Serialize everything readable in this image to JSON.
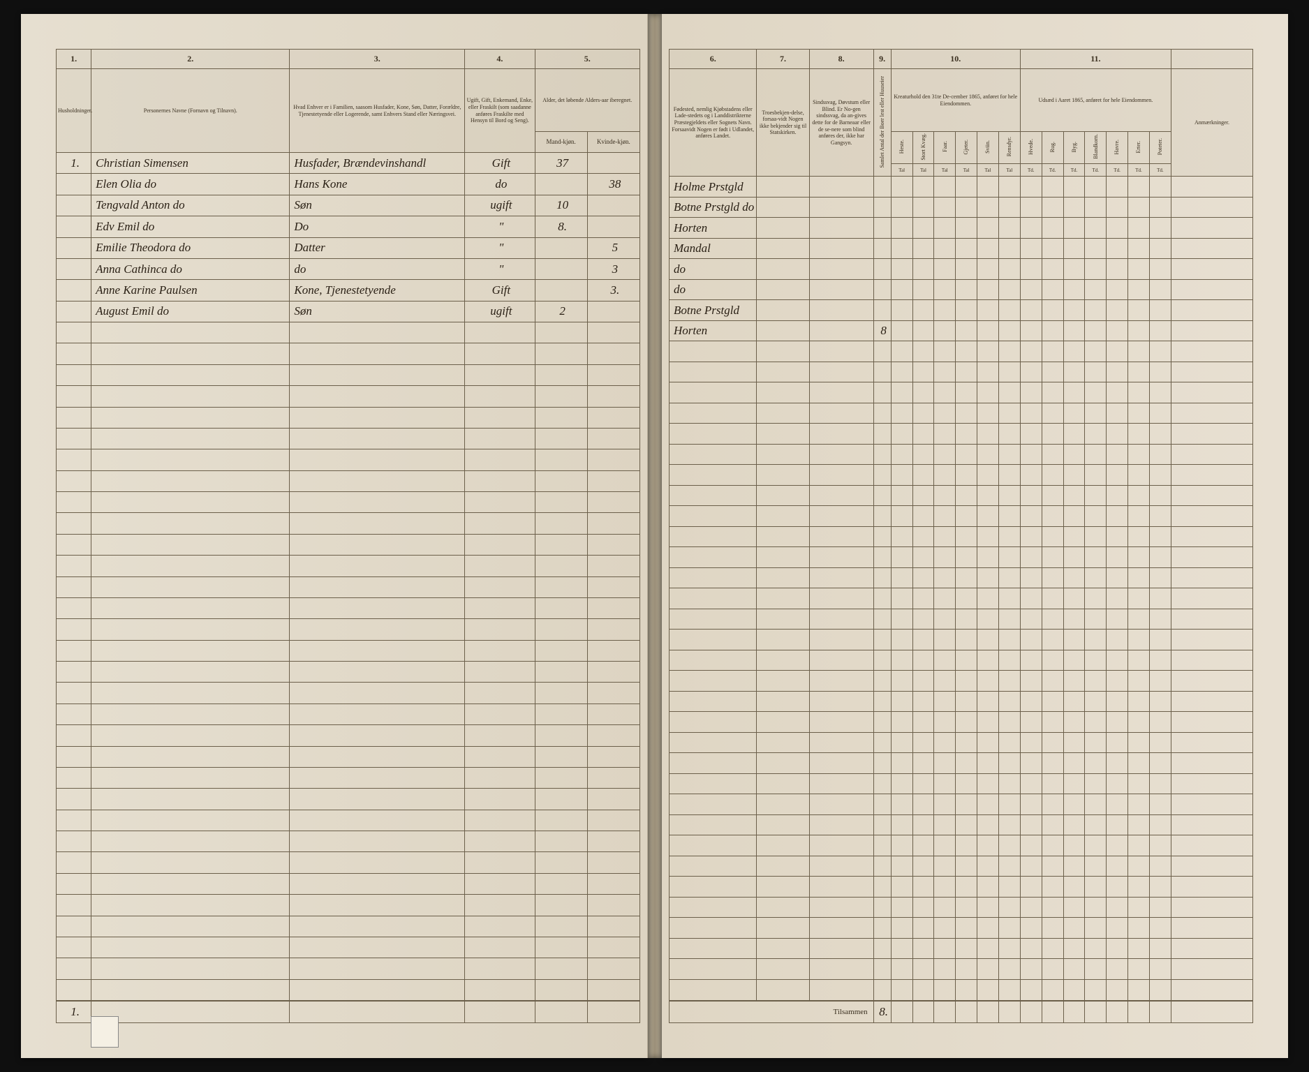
{
  "colors": {
    "page_bg": "#e6dfd0",
    "border": "#6b5f4a",
    "ink": "#2a2015",
    "book_bg": "#1a1a1a"
  },
  "left_page": {
    "col_numbers": [
      "1.",
      "2.",
      "3.",
      "4.",
      "5."
    ],
    "headers": {
      "col1": "Husholdninger.",
      "col2": "Personernes Navne (Fornavn og Tilnavn).",
      "col3": "Hvad Enhver er i Familien, saasom Husfader, Kone, Søn, Datter, Forældre, Tjenestetyende eller Logerende, samt Enhvers Stand eller Næringsvei.",
      "col4": "Ugift, Gift, Enkemand, Enke, eller Fraskilt (som saadanne anføres Fraskilte med Hensyn til Bord og Seng).",
      "col5": "Alder, det løbende Alders-aar iberegnet.",
      "col5a": "Mand-kjøn.",
      "col5b": "Kvinde-kjøn."
    },
    "rows": [
      {
        "num": "1.",
        "name": "Christian Simensen",
        "role": "Husfader, Brændevinshandl",
        "status": "Gift",
        "age_m": "37",
        "age_f": ""
      },
      {
        "num": "",
        "name": "Elen Olia do",
        "role": "Hans Kone",
        "status": "do",
        "age_m": "",
        "age_f": "38"
      },
      {
        "num": "",
        "name": "Tengvald Anton do",
        "role": "Søn",
        "status": "ugift",
        "age_m": "10",
        "age_f": ""
      },
      {
        "num": "",
        "name": "Edv Emil do",
        "role": "Do",
        "status": "\"",
        "age_m": "8.",
        "age_f": ""
      },
      {
        "num": "",
        "name": "Emilie Theodora do",
        "role": "Datter",
        "status": "\"",
        "age_m": "",
        "age_f": "5"
      },
      {
        "num": "",
        "name": "Anna Cathinca do",
        "role": "do",
        "status": "\"",
        "age_m": "",
        "age_f": "3"
      },
      {
        "num": "",
        "name": "Anne Karine Paulsen",
        "role": "Kone, Tjenestetyende",
        "status": "Gift",
        "age_m": "",
        "age_f": "3."
      },
      {
        "num": "",
        "name": "August Emil do",
        "role": "Søn",
        "status": "ugift",
        "age_m": "2",
        "age_f": ""
      }
    ],
    "footer_num": "1."
  },
  "right_page": {
    "col_numbers": [
      "6.",
      "7.",
      "8.",
      "9.",
      "10.",
      "11."
    ],
    "headers": {
      "col6": "Fødested, nemlig Kjøbstadens eller Lade-stedets og i Landdistrikterne Præstegjeldets eller Sognets Navn. Forsaavidt Nogen er født i Udlandet, anføres Landet.",
      "col7": "Troesbekjen-delse, forsaa-vidt Nogen ikke bekjender sig til Statskirken.",
      "col8": "Sindssvag, Døvstum eller Blind. Er No-gen sindssvag, da an-gives dette for de Barneaar eller de se-nere som blind anføres der, ikke har Gangsyn.",
      "col9": "Samlet Antal der Boer lest eller Huuseier",
      "col10": "Kreaturhold den 31te De-cember 1865, anføret for hele Eiendommen.",
      "col11": "Udsæd i Aaret 1865, anføret for hele Eiendommen.",
      "col12": "Anmærkninger.",
      "livestock": [
        "Heste.",
        "Stort Kvæg.",
        "Faar.",
        "Gjeter.",
        "Sviin.",
        "Rensdyr."
      ],
      "crops": [
        "Hvede.",
        "Rug.",
        "Byg.",
        "Blandkorn.",
        "Havre.",
        "Erter.",
        "Poteter."
      ],
      "unit": "Tal",
      "unit2": "Td."
    },
    "rows": [
      {
        "birthplace": "Holme Prstgld"
      },
      {
        "birthplace": "Botne Prstgld do"
      },
      {
        "birthplace": "Horten"
      },
      {
        "birthplace": "Mandal"
      },
      {
        "birthplace": "do"
      },
      {
        "birthplace": "do"
      },
      {
        "birthplace": "Botne Prstgld"
      },
      {
        "birthplace": "Horten",
        "count": "8"
      }
    ],
    "footer_label": "Tilsammen",
    "footer_total": "8."
  }
}
